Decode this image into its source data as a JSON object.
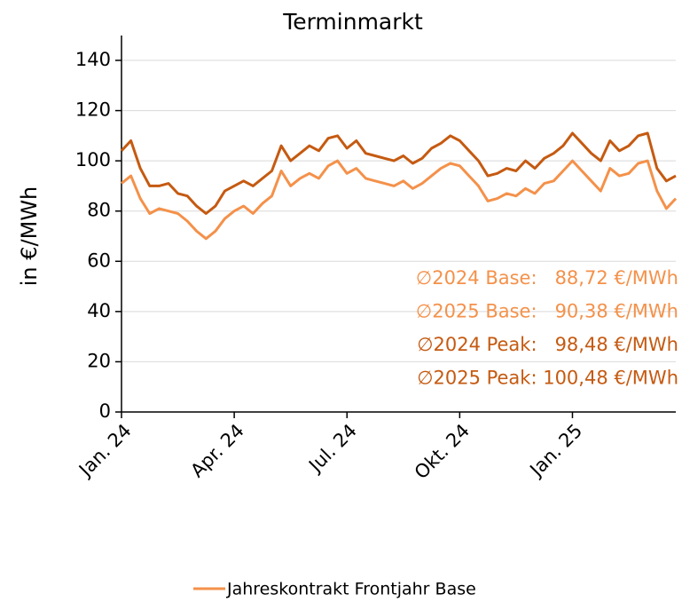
{
  "chart_data": {
    "type": "line",
    "title": "Terminmarkt",
    "y_label": "in €/MWh",
    "x": [
      0,
      0.25,
      0.5,
      0.75,
      1,
      1.25,
      1.5,
      1.75,
      2,
      2.25,
      2.5,
      2.75,
      3,
      3.25,
      3.5,
      3.75,
      4,
      4.25,
      4.5,
      4.75,
      5,
      5.25,
      5.5,
      5.75,
      6,
      6.25,
      6.5,
      6.75,
      7,
      7.25,
      7.5,
      7.75,
      8,
      8.25,
      8.5,
      8.75,
      9,
      9.25,
      9.5,
      9.75,
      10,
      10.25,
      10.5,
      10.75,
      11,
      11.25,
      11.5,
      11.75,
      12,
      12.25,
      12.5,
      12.75,
      13,
      13.25,
      13.5,
      13.75,
      14,
      14.25,
      14.5,
      14.75
    ],
    "series": [
      {
        "name": "Jahreskontrakt Frontjahr Base",
        "color": "#f4914a",
        "values": [
          91,
          94,
          85,
          79,
          81,
          80,
          79,
          76,
          72,
          69,
          72,
          77,
          80,
          82,
          79,
          83,
          86,
          96,
          90,
          93,
          95,
          93,
          98,
          100,
          95,
          97,
          93,
          92,
          91,
          90,
          92,
          89,
          91,
          94,
          97,
          99,
          98,
          94,
          90,
          84,
          85,
          87,
          86,
          89,
          87,
          91,
          92,
          96,
          100,
          96,
          92,
          88,
          97,
          94,
          95,
          99,
          100,
          88,
          81,
          85
        ]
      },
      {
        "color": "#c55a11",
        "values": [
          104,
          108,
          97,
          90,
          90,
          91,
          87,
          86,
          82,
          79,
          82,
          88,
          90,
          92,
          90,
          93,
          96,
          106,
          100,
          103,
          106,
          104,
          109,
          110,
          105,
          108,
          103,
          102,
          101,
          100,
          102,
          99,
          101,
          105,
          107,
          110,
          108,
          104,
          100,
          94,
          95,
          97,
          96,
          100,
          97,
          101,
          103,
          106,
          111,
          107,
          103,
          100,
          108,
          104,
          106,
          110,
          111,
          97,
          92,
          94
        ]
      }
    ],
    "xlim": [
      0,
      14.75
    ],
    "xticks": [
      {
        "value": 0,
        "label": "Jan. 24"
      },
      {
        "value": 3,
        "label": "Apr. 24"
      },
      {
        "value": 6,
        "label": "Jul. 24"
      },
      {
        "value": 9,
        "label": "Okt. 24"
      },
      {
        "value": 12,
        "label": "Jan. 25"
      }
    ],
    "ylim": [
      0,
      140
    ],
    "yticks": [
      0,
      20,
      40,
      60,
      80,
      100,
      120,
      140
    ],
    "grid": true,
    "annotations": [
      {
        "text": "∅2024 Base:   88,72 €/MWh",
        "color": "#f4914a"
      },
      {
        "text": "∅2025 Base:   90,38 €/MWh",
        "color": "#f4914a"
      },
      {
        "text": "∅2024 Peak:   98,48 €/MWh",
        "color": "#c55a11"
      },
      {
        "text": "∅2025 Peak: 100,48 €/MWh",
        "color": "#c55a11"
      }
    ]
  }
}
